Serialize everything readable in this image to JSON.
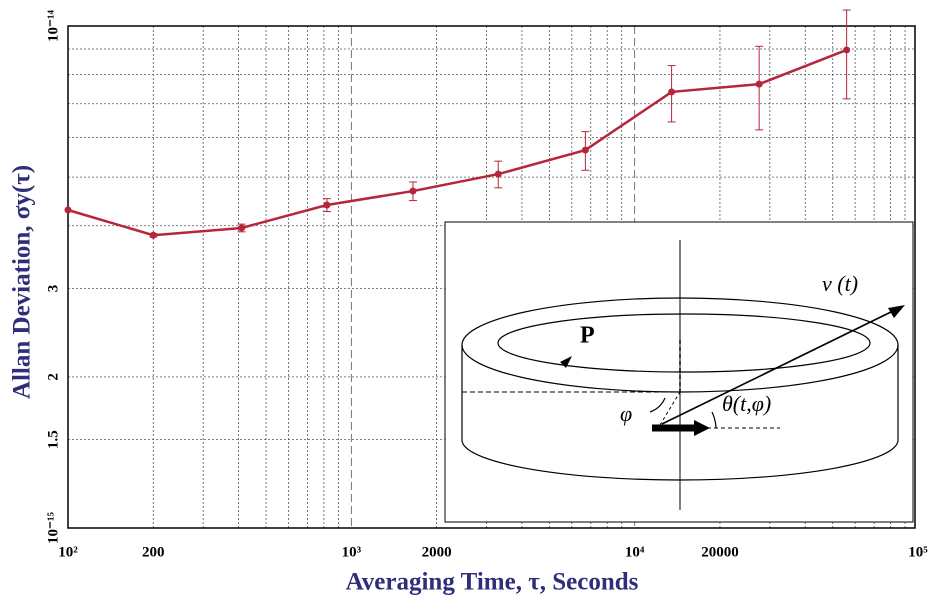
{
  "chart_data": {
    "type": "line",
    "xlabel": "Averaging Time, τ, Seconds",
    "ylabel": "Allan Deviation, σy(τ)",
    "x": [
      100,
      200,
      410,
      820,
      1650,
      3300,
      6700,
      13500,
      27500,
      56000
    ],
    "series": [
      {
        "color": "#b5263a",
        "values": [
          4.3e-15,
          3.83e-15,
          3.96e-15,
          4.4e-15,
          4.69e-15,
          5.07e-15,
          5.66e-15,
          7.39e-15,
          7.66e-15,
          8.96e-15
        ],
        "errors": [
          0,
          3e-17,
          7e-17,
          1.3e-16,
          2e-16,
          3.1e-16,
          5e-16,
          9.5e-16,
          1.45e-15,
          1.8e-15
        ]
      }
    ],
    "xlim": [
      100,
      100000
    ],
    "ylim": [
      1e-15,
      1e-14
    ],
    "log_x": true,
    "log_y": true,
    "grid": true,
    "xticks": [
      {
        "value": 100,
        "label": "10²"
      },
      200,
      {
        "value": 1000,
        "label": "10³"
      },
      2000,
      {
        "value": 10000,
        "label": "10⁴"
      },
      20000,
      {
        "value": 100000,
        "label": "10⁵"
      }
    ],
    "xticks_minor": [
      300,
      400,
      500,
      600,
      700,
      800,
      900,
      3000,
      4000,
      5000,
      6000,
      7000,
      8000,
      9000,
      30000,
      40000,
      50000,
      60000,
      70000,
      80000,
      90000
    ],
    "yticks": [
      {
        "value": 1e-15,
        "label": "10⁻¹⁵"
      },
      {
        "value": 1.5e-15,
        "label": "1.5"
      },
      {
        "value": 2e-15,
        "label": "2"
      },
      {
        "value": 3e-15,
        "label": "3"
      },
      {
        "value": 1e-14,
        "label": "10⁻¹⁴"
      }
    ],
    "yticks_minor": [
      4e-15,
      5e-15,
      6e-15,
      7e-15,
      8e-15,
      9e-15
    ],
    "inset": {
      "p_label": "P",
      "v_label": "v (t)",
      "phi_label": "φ",
      "theta_label": "θ(t,φ)"
    }
  }
}
